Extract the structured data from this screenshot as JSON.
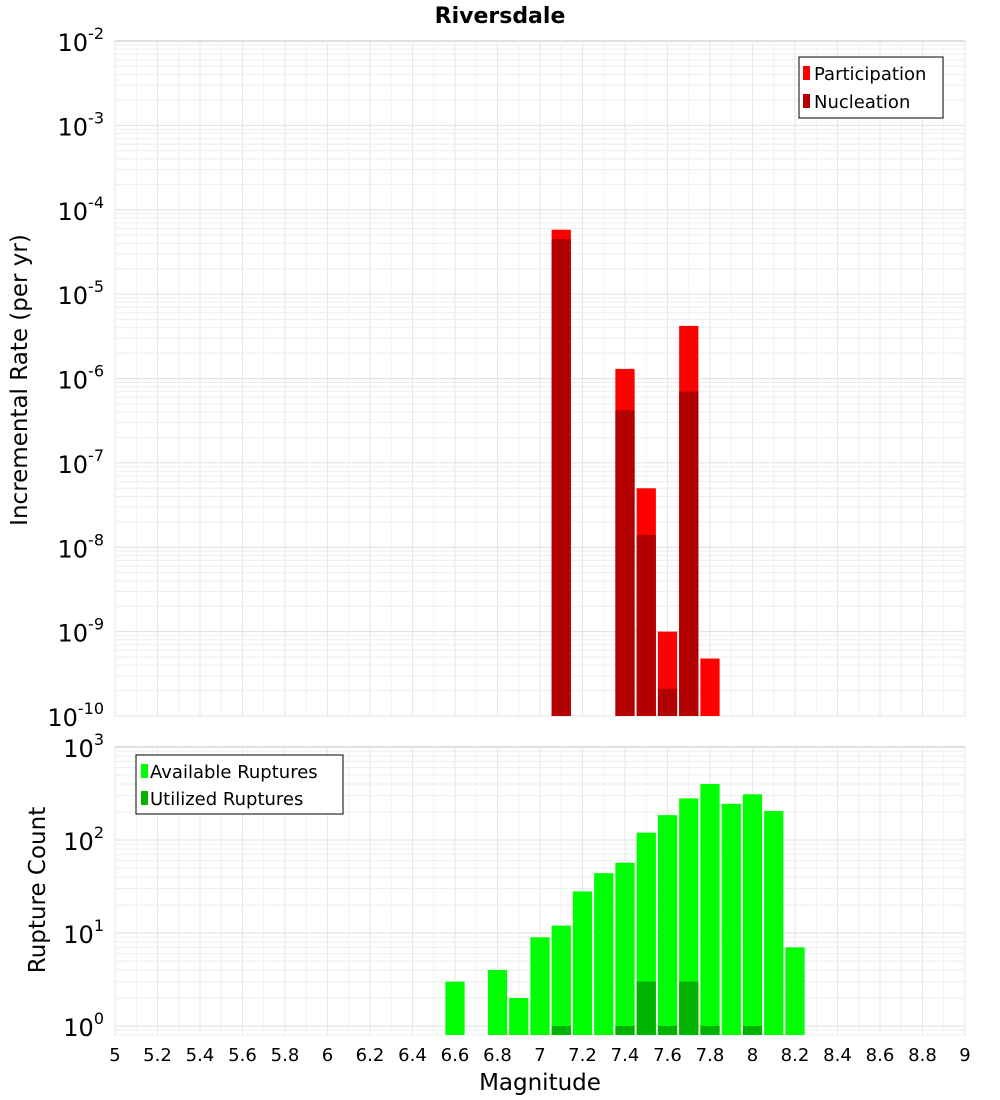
{
  "chart_data": [
    {
      "type": "bar",
      "title": "Riversdale",
      "xlabel": "",
      "ylabel": "Incremental Rate (per yr)",
      "yscale": "log",
      "ylim": [
        1e-10,
        0.01
      ],
      "xlim": [
        5,
        9
      ],
      "y_tick_bases": [
        "10",
        "10",
        "10",
        "10",
        "10",
        "10",
        "10",
        "10",
        "10"
      ],
      "y_tick_exponents": [
        "-10",
        "-9",
        "-8",
        "-7",
        "-6",
        "-5",
        "-4",
        "-3",
        "-2"
      ],
      "legend": {
        "position": "top-right",
        "entries": [
          "Participation",
          "Nucleation"
        ]
      },
      "series": [
        {
          "name": "Participation",
          "color": "#ff0000",
          "x": [
            7.1,
            7.4,
            7.5,
            7.6,
            7.7,
            7.8
          ],
          "values": [
            5.8e-05,
            1.3e-06,
            5e-08,
            1e-09,
            4.2e-06,
            4.8e-10
          ]
        },
        {
          "name": "Nucleation",
          "color": "#b30000",
          "x": [
            7.1,
            7.4,
            7.5,
            7.6,
            7.7
          ],
          "values": [
            4.5e-05,
            4.2e-07,
            1.4e-08,
            2.1e-10,
            7e-07
          ]
        }
      ]
    },
    {
      "type": "bar",
      "title": "",
      "xlabel": "Magnitude",
      "ylabel": "Rupture Count",
      "yscale": "log",
      "ylim": [
        0.8,
        1000
      ],
      "xlim": [
        5,
        9
      ],
      "x_ticks": [
        "5",
        "5.2",
        "5.4",
        "5.6",
        "5.8",
        "6",
        "6.2",
        "6.4",
        "6.6",
        "6.8",
        "7",
        "7.2",
        "7.4",
        "7.6",
        "7.8",
        "8",
        "8.2",
        "8.4",
        "8.6",
        "8.8",
        "9"
      ],
      "y_tick_bases": [
        "10",
        "10",
        "10",
        "10"
      ],
      "y_tick_exponents": [
        "0",
        "1",
        "2",
        "3"
      ],
      "legend": {
        "position": "top-left",
        "entries": [
          "Available Ruptures",
          "Utilized Ruptures"
        ]
      },
      "series": [
        {
          "name": "Available Ruptures",
          "color": "#00ff00",
          "x": [
            6.6,
            6.8,
            6.9,
            7.0,
            7.1,
            7.2,
            7.3,
            7.4,
            7.5,
            7.6,
            7.7,
            7.8,
            7.9,
            8.0,
            8.1,
            8.2
          ],
          "values": [
            3,
            4,
            2,
            9,
            12,
            28,
            44,
            57,
            120,
            185,
            280,
            400,
            245,
            310,
            205,
            7
          ]
        },
        {
          "name": "Utilized Ruptures",
          "color": "#00b300",
          "x": [
            7.1,
            7.4,
            7.5,
            7.6,
            7.7,
            7.8,
            8.0
          ],
          "values": [
            1,
            1,
            3,
            1,
            3,
            1,
            1
          ]
        }
      ]
    }
  ]
}
